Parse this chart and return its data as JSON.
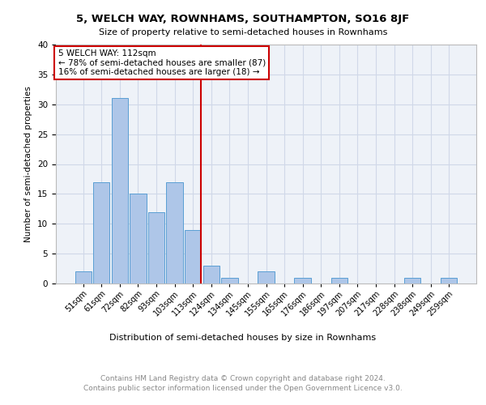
{
  "title": "5, WELCH WAY, ROWNHAMS, SOUTHAMPTON, SO16 8JF",
  "subtitle": "Size of property relative to semi-detached houses in Rownhams",
  "xlabel": "Distribution of semi-detached houses by size in Rownhams",
  "ylabel": "Number of semi-detached properties",
  "bin_labels": [
    "51sqm",
    "61sqm",
    "72sqm",
    "82sqm",
    "93sqm",
    "103sqm",
    "113sqm",
    "124sqm",
    "134sqm",
    "145sqm",
    "155sqm",
    "165sqm",
    "176sqm",
    "186sqm",
    "197sqm",
    "207sqm",
    "217sqm",
    "228sqm",
    "238sqm",
    "249sqm",
    "259sqm"
  ],
  "bar_heights": [
    2,
    17,
    31,
    15,
    12,
    17,
    9,
    3,
    1,
    0,
    2,
    0,
    1,
    0,
    1,
    0,
    0,
    0,
    1,
    0,
    1
  ],
  "bar_color": "#aec6e8",
  "bar_edge_color": "#5a9fd4",
  "property_label": "5 WELCH WAY: 112sqm",
  "pct_smaller": 78,
  "count_smaller": 87,
  "pct_larger": 16,
  "count_larger": 18,
  "vline_bin_index": 6,
  "vline_color": "#cc0000",
  "annotation_box_color": "#cc0000",
  "grid_color": "#d0d8e8",
  "background_color": "#eef2f8",
  "footer_text": "Contains HM Land Registry data © Crown copyright and database right 2024.\nContains public sector information licensed under the Open Government Licence v3.0.",
  "ylim": [
    0,
    40
  ],
  "yticks": [
    0,
    5,
    10,
    15,
    20,
    25,
    30,
    35,
    40
  ]
}
